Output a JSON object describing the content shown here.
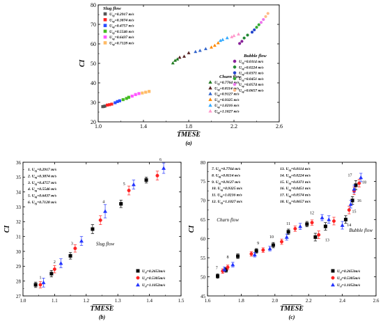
{
  "chart_data": [
    {
      "id": "a",
      "type": "scatter",
      "caption": "(a)",
      "xlabel": "TMESE",
      "ylabel": "CI",
      "xlim": [
        1.0,
        2.6
      ],
      "ylim": [
        20,
        80
      ],
      "xticks": [
        "1.0",
        "1.4",
        "1.8",
        "2.2",
        "2.6"
      ],
      "yticks": [
        "20",
        "30",
        "40",
        "50",
        "60",
        "70",
        "80"
      ],
      "legend_groups": [
        {
          "title": "Slug flow",
          "entries": [
            {
              "label": "U_sg=0.2917 m/s",
              "color": "#555555",
              "marker": "square"
            },
            {
              "label": "U_sg=0.3874 m/s",
              "color": "#ff2222",
              "marker": "square"
            },
            {
              "label": "U_sg=0.4757 m/s",
              "color": "#2a4cff",
              "marker": "square"
            },
            {
              "label": "U_sg=0.5546 m/s",
              "color": "#44bb22",
              "marker": "square"
            },
            {
              "label": "U_sg=0.6437 m/s",
              "color": "#ff55ff",
              "marker": "square"
            },
            {
              "label": "U_sg=0.7128 m/s",
              "color": "#ffbb66",
              "marker": "square"
            }
          ]
        },
        {
          "title": "Churn flow",
          "entries": [
            {
              "label": "U_sg=0.7764 m/s",
              "color": "#1f7a1f",
              "marker": "triangle"
            },
            {
              "label": "U_sg=0.8114 m/s",
              "color": "#552222",
              "marker": "triangle"
            },
            {
              "label": "U_sg=0.9127 m/s",
              "color": "#3366cc",
              "marker": "triangle"
            },
            {
              "label": "U_sg=0.9325 m/s",
              "color": "#ff8800",
              "marker": "triangle"
            },
            {
              "label": "U_sg=1.0216 m/s",
              "color": "#33aaff",
              "marker": "triangle"
            },
            {
              "label": "U_sg=1.1027 m/s",
              "color": "#ff99cc",
              "marker": "triangle"
            }
          ]
        },
        {
          "title": "Bubble flow",
          "entries": [
            {
              "label": "U_sg=0.0114 m/s",
              "color": "#882299",
              "marker": "circle"
            },
            {
              "label": "U_sg=0.0224 m/s",
              "color": "#228833",
              "marker": "circle"
            },
            {
              "label": "U_sg=0.0371 m/s",
              "color": "#2244cc",
              "marker": "circle"
            },
            {
              "label": "U_sg=0.0451 m/s",
              "color": "#33aa33",
              "marker": "circle"
            },
            {
              "label": "U_sg=0.0574 m/s",
              "color": "#ee77ee",
              "marker": "circle"
            },
            {
              "label": "U_sg=0.0657 m/s",
              "color": "#ffbb88",
              "marker": "circle"
            }
          ]
        }
      ],
      "series": [
        {
          "name": "Slug flow",
          "color": "#555555",
          "marker": "square",
          "points": [
            [
              1.04,
              27.8
            ],
            [
              1.05,
              27.9
            ],
            [
              1.06,
              28.1
            ],
            [
              1.08,
              28.6
            ],
            [
              1.1,
              28.8
            ],
            [
              1.12,
              29.1
            ],
            [
              1.15,
              29.8
            ],
            [
              1.17,
              30.4
            ],
            [
              1.19,
              30.8
            ],
            [
              1.22,
              31.4
            ],
            [
              1.25,
              32.0
            ],
            [
              1.27,
              32.6
            ],
            [
              1.3,
              33.2
            ],
            [
              1.33,
              34.0
            ],
            [
              1.36,
              34.5
            ],
            [
              1.39,
              34.8
            ],
            [
              1.42,
              35.2
            ],
            [
              1.45,
              35.6
            ]
          ]
        },
        {
          "name": "Churn flow",
          "color": "#ff8800",
          "marker": "triangle",
          "points": [
            [
              1.66,
              50.2
            ],
            [
              1.68,
              51.5
            ],
            [
              1.7,
              52.2
            ],
            [
              1.72,
              53.1
            ],
            [
              1.76,
              53.6
            ],
            [
              1.8,
              55.4
            ],
            [
              1.86,
              56.0
            ],
            [
              1.9,
              56.6
            ],
            [
              1.95,
              57.5
            ],
            [
              2.0,
              58.3
            ],
            [
              2.03,
              59.2
            ],
            [
              2.06,
              60.5
            ],
            [
              2.08,
              61.7
            ],
            [
              2.1,
              62.2
            ],
            [
              2.14,
              63.1
            ],
            [
              2.18,
              63.6
            ],
            [
              2.2,
              64.2
            ],
            [
              2.24,
              65.0
            ]
          ]
        },
        {
          "name": "Bubble flow",
          "color": "#882299",
          "marker": "circle",
          "points": [
            [
              2.25,
              60.2
            ],
            [
              2.27,
              61.3
            ],
            [
              2.29,
              63.0
            ],
            [
              2.32,
              64.5
            ],
            [
              2.36,
              66.0
            ],
            [
              2.38,
              67.2
            ],
            [
              2.4,
              68.5
            ],
            [
              2.42,
              69.8
            ],
            [
              2.44,
              71.0
            ],
            [
              2.46,
              72.5
            ],
            [
              2.48,
              74.0
            ],
            [
              2.5,
              75.6
            ]
          ]
        }
      ]
    },
    {
      "id": "b",
      "type": "scatter",
      "caption": "(b)",
      "xlabel": "TMESE",
      "ylabel": "CI",
      "xlim": [
        1.0,
        1.5
      ],
      "ylim": [
        27,
        36
      ],
      "xticks": [
        "1.0",
        "1.1",
        "1.2",
        "1.3",
        "1.4",
        "1.5"
      ],
      "yticks": [
        "27",
        "28",
        "29",
        "30",
        "31",
        "32",
        "33",
        "34",
        "35",
        "36"
      ],
      "region_label": "Slug flow",
      "numbered_legend": [
        "1.  U_sg=0.2917 m/s",
        "2.  U_sg=0.3874 m/s",
        "3.  U_sg=0.4757 m/s",
        "4.  U_sg=0.5546 m/s",
        "5.  U_sg=0.6437 m/s",
        "6.  U_sg=0.7128 m/s"
      ],
      "series": [
        {
          "name": "U_sl=0.2653m/s",
          "color": "#000000",
          "marker": "square",
          "points": [
            [
              1.04,
              27.75,
              0.18
            ],
            [
              1.09,
              28.5,
              0.22
            ],
            [
              1.15,
              29.7,
              0.22
            ],
            [
              1.22,
              31.5,
              0.3
            ],
            [
              1.31,
              33.2,
              0.25
            ],
            [
              1.39,
              34.8,
              0.2
            ]
          ]
        },
        {
          "name": "U_sl=0.5305m/s",
          "color": "#ff2222",
          "marker": "circle",
          "points": [
            [
              1.055,
              27.75,
              0.22
            ],
            [
              1.1,
              28.8,
              0.25
            ],
            [
              1.165,
              30.2,
              0.25
            ],
            [
              1.245,
              32.1,
              0.3
            ],
            [
              1.335,
              34.1,
              0.3
            ],
            [
              1.425,
              35.1,
              0.3
            ]
          ]
        },
        {
          "name": "U_sl=1.1052m/s",
          "color": "#2233ff",
          "marker": "triangle",
          "points": [
            [
              1.065,
              27.9,
              0.3
            ],
            [
              1.12,
              29.2,
              0.3
            ],
            [
              1.185,
              30.7,
              0.3
            ],
            [
              1.26,
              32.7,
              0.45
            ],
            [
              1.35,
              34.5,
              0.3
            ],
            [
              1.445,
              35.6,
              0.35
            ]
          ]
        }
      ],
      "annotations": [
        {
          "text": "1",
          "x": 1.055,
          "y": 28.15
        },
        {
          "text": "2",
          "x": 1.1,
          "y": 29.2
        },
        {
          "text": "3",
          "x": 1.155,
          "y": 30.45
        },
        {
          "text": "4",
          "x": 1.255,
          "y": 33.25
        },
        {
          "text": "5",
          "x": 1.32,
          "y": 34.45
        },
        {
          "text": "6",
          "x": 1.435,
          "y": 36.1
        }
      ],
      "legend": [
        "U_sl=0.2653m/s",
        "U_sl=0.5305m/s",
        "U_sl=1.1052m/s"
      ]
    },
    {
      "id": "c",
      "type": "scatter",
      "caption": "(c)",
      "xlabel": "TMESE",
      "ylabel": "CI",
      "xlim": [
        1.6,
        2.6
      ],
      "ylim": [
        45,
        80
      ],
      "xticks": [
        "1.6",
        "1.8",
        "2.0",
        "2.2",
        "2.4",
        "2.6"
      ],
      "yticks": [
        "45",
        "50",
        "55",
        "60",
        "65",
        "70",
        "75",
        "80"
      ],
      "region_labels": [
        "Churn flow",
        "Bubble flow"
      ],
      "numbered_legend": [
        "7.  U_sg=0.7764 m/s",
        "8.  U_sg=0.8114 m/s",
        "9.  U_sg=0.9127 m/s",
        "10.  U_sg=0.9325 m/s",
        "11.  U_sg=1.0216 m/s",
        "12.  U_sg=1.1027 m/s",
        "13.  U_sg=0.0114 m/s",
        "14.  U_sg=0.0224 m/s",
        "15.  U_sg=0.0371 m/s",
        "16.  U_sg=0.0451 m/s",
        "17.  U_sg=0.0574 m/s",
        "18.  U_sg=0.0657 m/s"
      ],
      "series": [
        {
          "name": "U_sl=0.2653m/s",
          "color": "#000000",
          "marker": "square",
          "points": [
            [
              1.66,
              50.2,
              0.6
            ],
            [
              1.71,
              51.8,
              0.6
            ],
            [
              1.78,
              55.4,
              0.6
            ],
            [
              1.89,
              56.8,
              0.6
            ],
            [
              1.99,
              58.3,
              0.7
            ],
            [
              2.08,
              61.8,
              0.7
            ],
            [
              2.19,
              63.8,
              0.7
            ],
            [
              2.24,
              60.4,
              1.0
            ],
            [
              2.3,
              63.2,
              1.0
            ],
            [
              2.42,
              65.0,
              1.0
            ],
            [
              2.46,
              70.0,
              1.0
            ],
            [
              2.48,
              74.0,
              1.2
            ]
          ]
        },
        {
          "name": "U_sl=0.5305m/s",
          "color": "#ff2222",
          "marker": "circle",
          "points": [
            [
              1.69,
              51.5,
              0.6
            ],
            [
              1.72,
              52.5,
              0.6
            ],
            [
              1.86,
              56.0,
              0.6
            ],
            [
              1.93,
              57.0,
              0.6
            ],
            [
              2.04,
              59.2,
              0.7
            ],
            [
              2.12,
              62.6,
              0.7
            ],
            [
              2.22,
              64.2,
              0.7
            ],
            [
              2.26,
              61.0,
              1.0
            ],
            [
              2.35,
              64.6,
              1.0
            ],
            [
              2.44,
              67.5,
              1.0
            ],
            [
              2.47,
              72.5,
              1.0
            ],
            [
              2.5,
              74.5,
              1.0
            ]
          ]
        },
        {
          "name": "U_sl=1.1052m/s",
          "color": "#2233ff",
          "marker": "triangle",
          "points": [
            [
              1.7,
              52.0,
              0.6
            ],
            [
              1.75,
              53.2,
              0.6
            ],
            [
              1.88,
              55.8,
              0.6
            ],
            [
              1.97,
              57.4,
              0.6
            ],
            [
              2.07,
              60.4,
              0.8
            ],
            [
              2.15,
              63.2,
              0.8
            ],
            [
              2.28,
              65.5,
              0.8
            ],
            [
              2.32,
              65.0,
              1.0
            ],
            [
              2.4,
              63.5,
              1.0
            ],
            [
              2.45,
              69.0,
              1.0
            ],
            [
              2.47,
              73.0,
              1.0
            ],
            [
              2.51,
              76.0,
              1.1
            ]
          ]
        }
      ],
      "annotations": [
        {
          "text": "7",
          "x": 1.655,
          "y": 52.0
        },
        {
          "text": "8",
          "x": 1.72,
          "y": 54.8
        },
        {
          "text": "9",
          "x": 1.9,
          "y": 58.5
        },
        {
          "text": "10",
          "x": 1.98,
          "y": 60.1
        },
        {
          "text": "11",
          "x": 2.08,
          "y": 63.6
        },
        {
          "text": "12",
          "x": 2.22,
          "y": 66.4
        },
        {
          "text": "13",
          "x": 2.31,
          "y": 59.3
        },
        {
          "text": "14",
          "x": 2.44,
          "y": 63.2
        },
        {
          "text": "15",
          "x": 2.47,
          "y": 66.8
        },
        {
          "text": "16",
          "x": 2.5,
          "y": 69.6
        },
        {
          "text": "17",
          "x": 2.445,
          "y": 76.3
        },
        {
          "text": "18",
          "x": 2.53,
          "y": 74.4
        }
      ],
      "legend": [
        "U_sl=0.2653m/s",
        "U_sl=0.5305m/s",
        "U_sl=1.1052m/s"
      ]
    }
  ]
}
